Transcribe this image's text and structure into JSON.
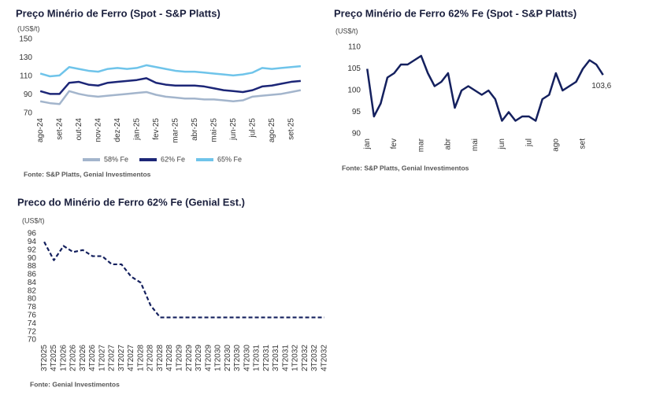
{
  "chart_data": [
    {
      "type": "line",
      "title": "Preço Minério de Ferro (Spot - S&P Platts)",
      "ylabel": "(US$/t)",
      "categories": [
        "ago-24",
        null,
        "set-24",
        null,
        "out-24",
        null,
        "nov-24",
        null,
        "dez-24",
        null,
        "jan-25",
        null,
        "fev-25",
        null,
        "mar-25",
        null,
        "abr-25",
        null,
        "mai-25",
        null,
        "jun-25",
        null,
        "jul-25",
        null,
        "ago-25",
        null,
        "set-25",
        null
      ],
      "series": [
        {
          "name": "58% Fe",
          "color": "#a3b5cc",
          "values": [
            83,
            81,
            80,
            94,
            91,
            89,
            88,
            89,
            90,
            91,
            92,
            93,
            90,
            88,
            87,
            86,
            86,
            85,
            85,
            84,
            83,
            84,
            88,
            89,
            90,
            91,
            93,
            95
          ]
        },
        {
          "name": "62% Fe",
          "color": "#1c2677",
          "values": [
            94,
            91,
            91,
            103,
            104,
            101,
            100,
            103,
            104,
            105,
            106,
            108,
            103,
            101,
            100,
            100,
            100,
            99,
            97,
            95,
            94,
            93,
            95,
            99,
            100,
            102,
            104,
            105
          ]
        },
        {
          "name": "65% Fe",
          "color": "#6fc4ea",
          "values": [
            113,
            110,
            111,
            120,
            118,
            116,
            115,
            118,
            119,
            118,
            119,
            122,
            120,
            118,
            116,
            115,
            115,
            114,
            113,
            112,
            111,
            112,
            114,
            119,
            118,
            119,
            120,
            121
          ]
        }
      ],
      "ylim": [
        70,
        150
      ],
      "yticks": [
        70,
        90,
        110,
        130,
        150
      ],
      "legend": "bottom",
      "source": "Fonte: S&P Platts, Genial Investimentos"
    },
    {
      "type": "line",
      "title": "Preço Minério de Ferro 62% Fe (Spot - S&P Platts)",
      "ylabel": "(US$/t)",
      "categories": [
        "jan",
        null,
        null,
        null,
        "fev",
        null,
        null,
        null,
        "mar",
        null,
        null,
        null,
        "abr",
        null,
        null,
        null,
        "mai",
        null,
        null,
        null,
        "jun",
        null,
        null,
        null,
        "jul",
        null,
        null,
        null,
        "ago",
        null,
        null,
        null,
        "set",
        null,
        null,
        null
      ],
      "series": [
        {
          "name": "62% Fe",
          "color": "#14205e",
          "values": [
            105,
            94,
            97,
            103,
            104,
            106,
            106,
            107,
            108,
            104,
            101,
            102,
            104,
            96,
            100,
            101,
            100,
            99,
            100,
            98,
            93,
            95,
            93,
            94,
            94,
            93,
            98,
            99,
            104,
            100,
            101,
            102,
            105,
            107,
            106,
            103.6
          ],
          "value_labels": [
            null,
            null,
            null,
            null,
            null,
            null,
            null,
            null,
            null,
            null,
            null,
            null,
            null,
            null,
            null,
            null,
            null,
            null,
            null,
            null,
            null,
            null,
            null,
            null,
            null,
            null,
            null,
            null,
            null,
            null,
            null,
            null,
            null,
            null,
            null,
            "103,6"
          ]
        }
      ],
      "ylim": [
        90,
        110
      ],
      "yticks": [
        90,
        95,
        100,
        105,
        110
      ],
      "source": "Fonte: S&P Platts, Genial Investimentos"
    },
    {
      "type": "line",
      "title": "Preco do Minério de Ferro 62% Fe (Genial Est.)",
      "ylabel": "(US$/t)",
      "categories": [
        "3T2025",
        "4T2025",
        "1T2026",
        "2T2026",
        "3T2026",
        "4T2026",
        "1T2027",
        "2T2027",
        "3T2027",
        "4T2027",
        "1T2028",
        "2T2028",
        "3T2028",
        "4T2028",
        "1T2029",
        "2T2029",
        "3T2029",
        "4T2029",
        "1T2030",
        "2T2030",
        "3T2030",
        "4T2030",
        "1T2031",
        "2T2031",
        "3T2031",
        "4T2031",
        "1T2032",
        "2T2032",
        "3T2032",
        "4T2032"
      ],
      "series": [
        {
          "name": "62% Fe",
          "color": "#14205e",
          "dashed": true,
          "values": [
            94,
            89.5,
            93,
            91.5,
            92,
            90.5,
            90.5,
            88.5,
            88.5,
            85.5,
            84,
            78.5,
            75.5,
            75.5,
            75.5,
            75.5,
            75.5,
            75.5,
            75.5,
            75.5,
            75.5,
            75.5,
            75.5,
            75.5,
            75.5,
            75.5,
            75.5,
            75.5,
            75.5,
            75.5
          ]
        }
      ],
      "ylim": [
        70,
        96
      ],
      "yticks": [
        70,
        72,
        74,
        76,
        78,
        80,
        82,
        84,
        86,
        88,
        90,
        92,
        94,
        96
      ],
      "source": "Fonte: Genial Investimentos"
    }
  ]
}
